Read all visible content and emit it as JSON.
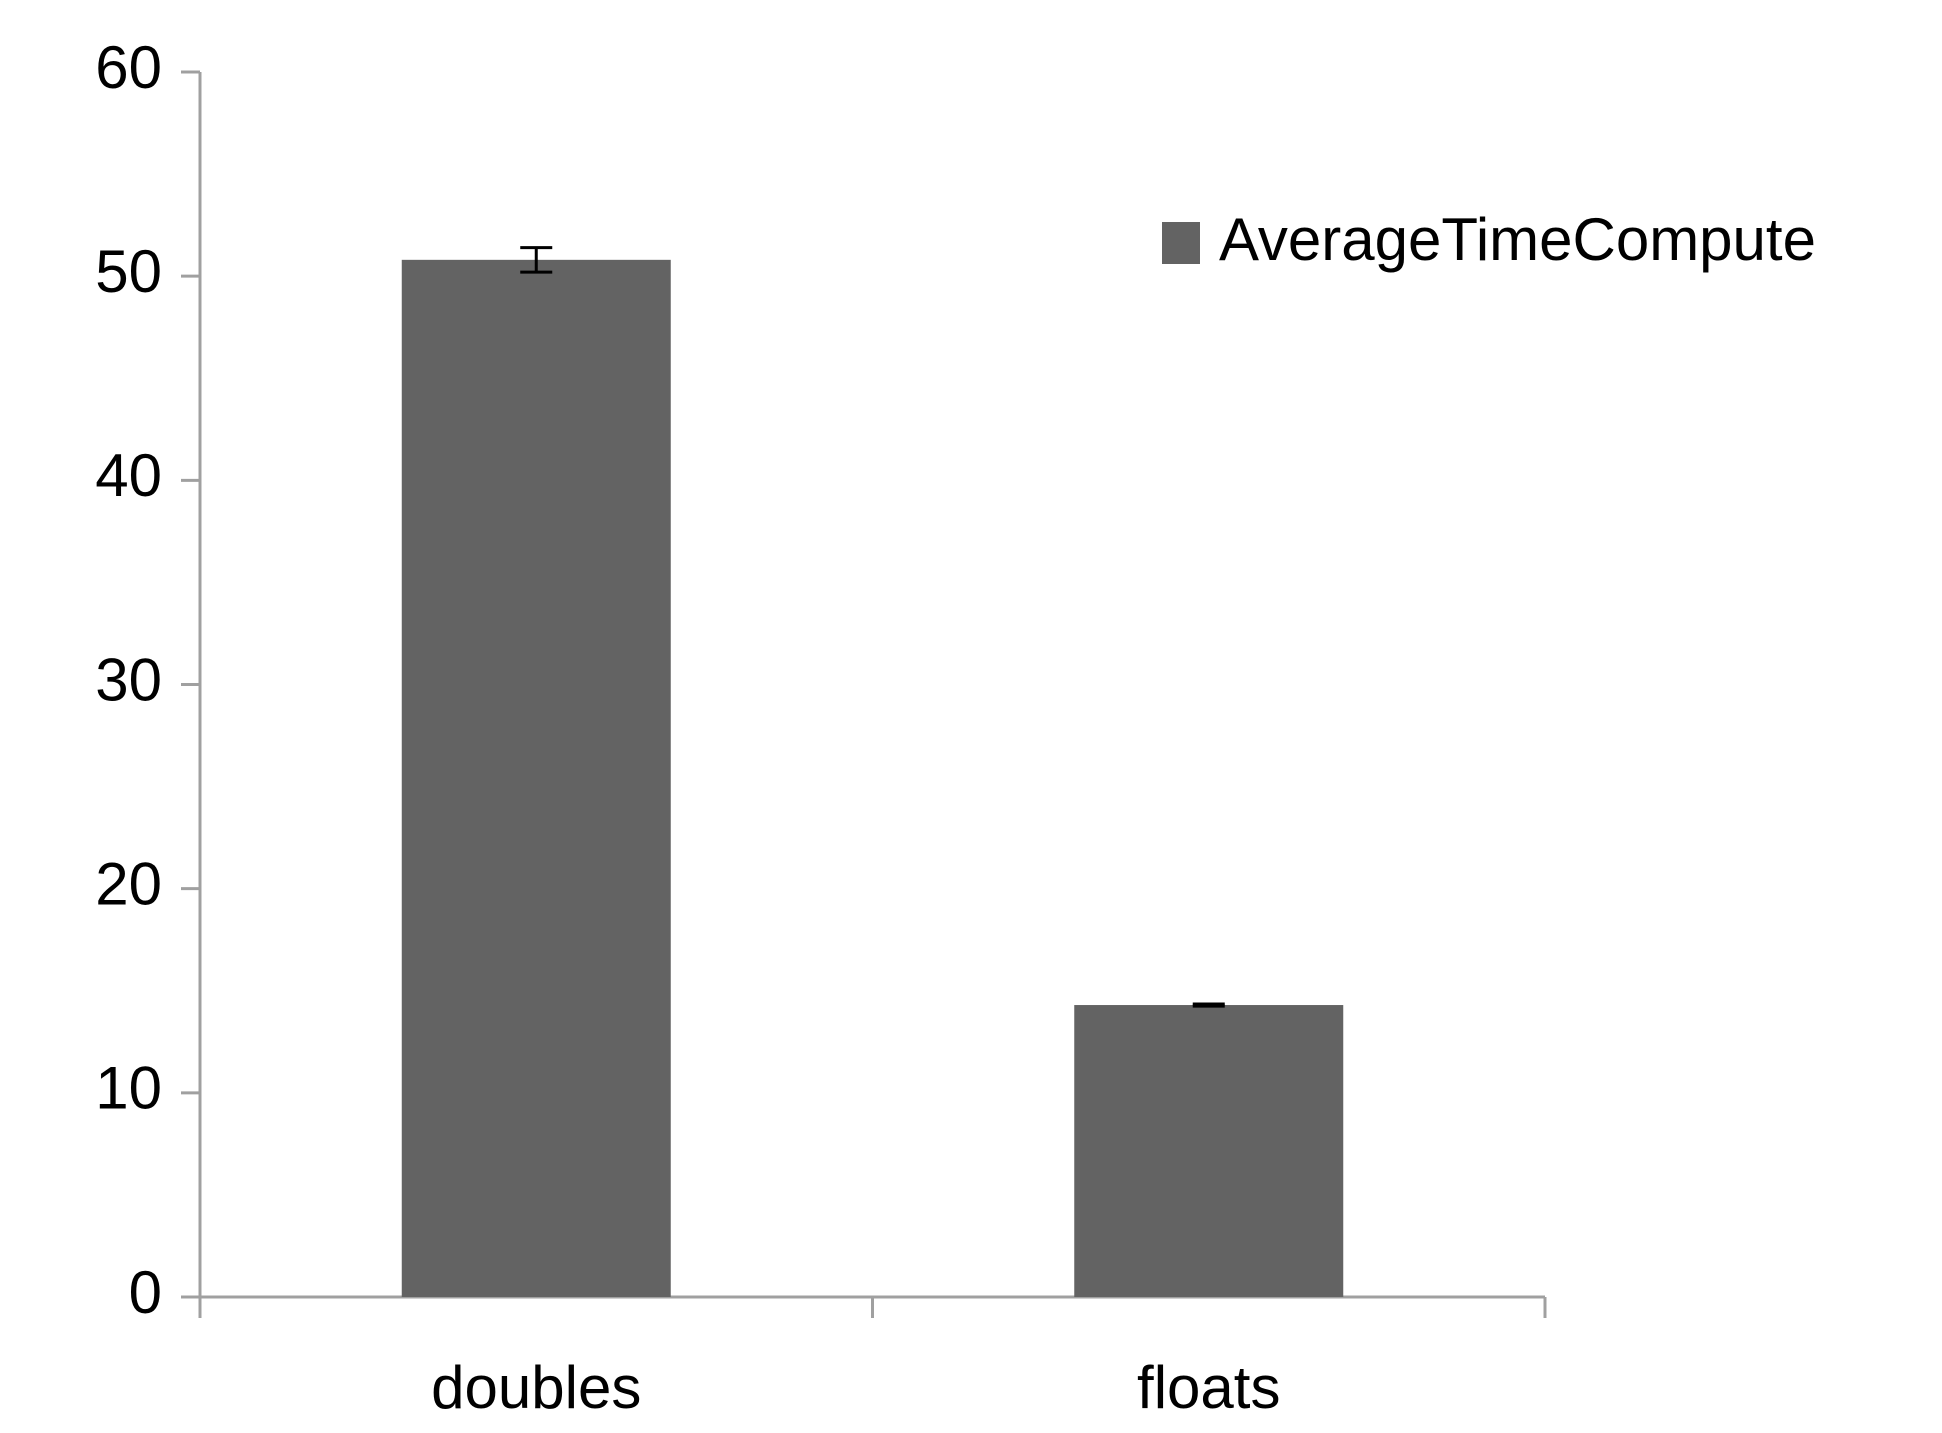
{
  "chart_data": {
    "type": "bar",
    "categories": [
      "doubles",
      "floats"
    ],
    "series": [
      {
        "name": "AverageTimeCompute",
        "color": "#636363",
        "values": [
          50.8,
          14.3
        ],
        "errors": [
          0.6,
          0.05
        ]
      }
    ],
    "ylim": [
      0,
      60
    ],
    "yticks": [
      0,
      10,
      20,
      30,
      40,
      50,
      60
    ],
    "grid": false,
    "legend": "upper right"
  }
}
